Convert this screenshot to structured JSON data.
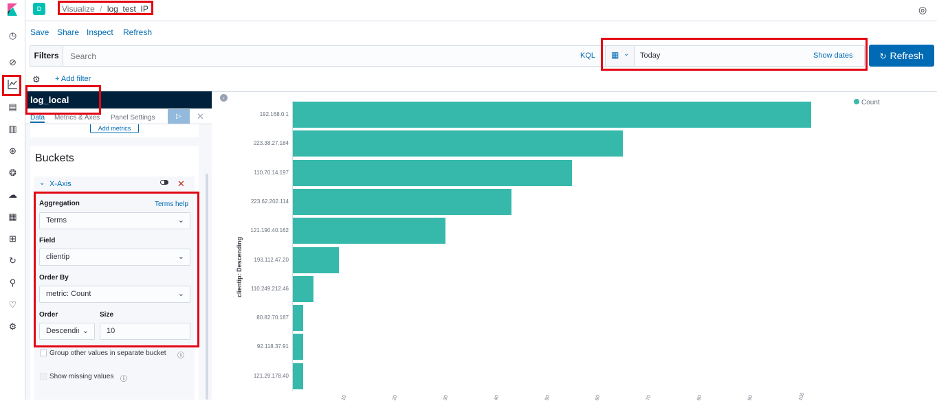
{
  "breadcrumb": {
    "avatar_letter": "D",
    "app": "Visualize",
    "separator": "/",
    "current": "log_test_IP"
  },
  "menu": {
    "save": "Save",
    "share": "Share",
    "inspect": "Inspect",
    "refresh": "Refresh"
  },
  "filter_bar": {
    "filters_label": "Filters",
    "search_placeholder": "Search",
    "kql": "KQL",
    "date": "Today",
    "show_dates": "Show dates",
    "refresh_button": "Refresh",
    "add_filter": "+ Add filter"
  },
  "editor": {
    "index_pattern": "log_local",
    "tabs": [
      "Data",
      "Metrics & Axes",
      "Panel Settings"
    ],
    "add_metrics": "Add metrics",
    "buckets_title": "Buckets",
    "xaxis_label": "X-Axis",
    "aggregation_label": "Aggregation",
    "terms_help": "Terms help",
    "aggregation_value": "Terms",
    "field_label": "Field",
    "field_value": "clientip",
    "order_by_label": "Order By",
    "order_by_value": "metric: Count",
    "order_label": "Order",
    "order_value": "Descending",
    "size_label": "Size",
    "size_value": "10",
    "group_other": "Group other values in separate bucket",
    "show_missing": "Show missing values"
  },
  "colors": {
    "bar": "#36b9ab",
    "accent": "#006bb4",
    "highlight": "#e30613",
    "header": "#00213b"
  },
  "chart_data": {
    "type": "bar",
    "orientation": "horizontal",
    "categories": [
      "192.168.0.1",
      "223.38.27.184",
      "110.70.14.197",
      "223.62.202.114",
      "121.190.40.162",
      "193.112.47.20",
      "110.249.212.46",
      "80.82.70.187",
      "92.118.37.91",
      "121.29.178.40"
    ],
    "series": [
      {
        "name": "Count",
        "values": [
          102,
          65,
          55,
          43,
          30,
          9,
          4,
          2,
          2,
          2
        ]
      }
    ],
    "ylabel": "clientip: Descending",
    "xlim": [
      0,
      110
    ],
    "xticks": [
      10,
      20,
      30,
      40,
      50,
      60,
      70,
      80,
      90,
      100
    ],
    "legend": "top-right"
  }
}
